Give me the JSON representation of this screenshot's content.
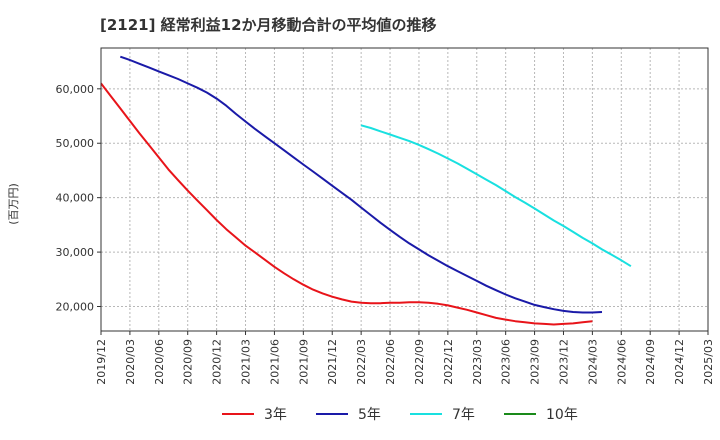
{
  "chart_data": {
    "type": "line",
    "title": "[2121]  経常利益12か月移動合計の平均値の推移",
    "ylabel": "(百万円)",
    "xlabel": "",
    "x_tick_labels": [
      "2019/12",
      "2020/03",
      "2020/06",
      "2020/09",
      "2020/12",
      "2021/03",
      "2021/06",
      "2021/09",
      "2021/12",
      "2022/03",
      "2022/06",
      "2022/09",
      "2022/12",
      "2023/03",
      "2023/06",
      "2023/09",
      "2023/12",
      "2024/03",
      "2024/06",
      "2024/09",
      "2024/12",
      "2025/03"
    ],
    "y_ticks": [
      20000,
      30000,
      40000,
      50000,
      60000
    ],
    "y_tick_labels": [
      "20,000",
      "30,000",
      "40,000",
      "50,000",
      "60,000"
    ],
    "ylim": [
      15500,
      67500
    ],
    "grid": true,
    "legend_position": "bottom",
    "series": [
      {
        "name": "3年",
        "color": "#e8141a",
        "start_index": 0,
        "values": [
          61000,
          58700,
          56400,
          54100,
          51800,
          49600,
          47400,
          45200,
          43200,
          41300,
          39500,
          37700,
          35900,
          34200,
          32700,
          31200,
          29900,
          28600,
          27300,
          26100,
          25000,
          24000,
          23100,
          22400,
          21800,
          21300,
          20900,
          20700,
          20600,
          20600,
          20700,
          20700,
          20800,
          20800,
          20700,
          20500,
          20200,
          19800,
          19400,
          18900,
          18400,
          17900,
          17600,
          17300,
          17100,
          16900,
          16800,
          16700,
          16800,
          16900,
          17100,
          17300
        ]
      },
      {
        "name": "5年",
        "color": "#1a1aa8",
        "start_index": 2,
        "values": [
          65900,
          65300,
          64600,
          63900,
          63200,
          62500,
          61800,
          61000,
          60200,
          59300,
          58200,
          56900,
          55400,
          54000,
          52600,
          51300,
          50000,
          48700,
          47400,
          46100,
          44800,
          43500,
          42200,
          40900,
          39600,
          38200,
          36800,
          35400,
          34100,
          32800,
          31600,
          30500,
          29400,
          28400,
          27400,
          26500,
          25600,
          24700,
          23800,
          23000,
          22200,
          21500,
          20900,
          20300,
          19900,
          19500,
          19200,
          19000,
          18900,
          18900,
          19000
        ]
      },
      {
        "name": "7年",
        "color": "#19e0e0",
        "start_index": 27,
        "values": [
          53300,
          52800,
          52200,
          51600,
          51000,
          50400,
          49700,
          48900,
          48100,
          47200,
          46300,
          45300,
          44300,
          43300,
          42300,
          41200,
          40100,
          39100,
          38000,
          36900,
          35800,
          34800,
          33700,
          32600,
          31600,
          30500,
          29500,
          28500,
          27400
        ]
      },
      {
        "name": "10年",
        "color": "#1a8a1a",
        "start_index": 0,
        "values": []
      }
    ]
  }
}
